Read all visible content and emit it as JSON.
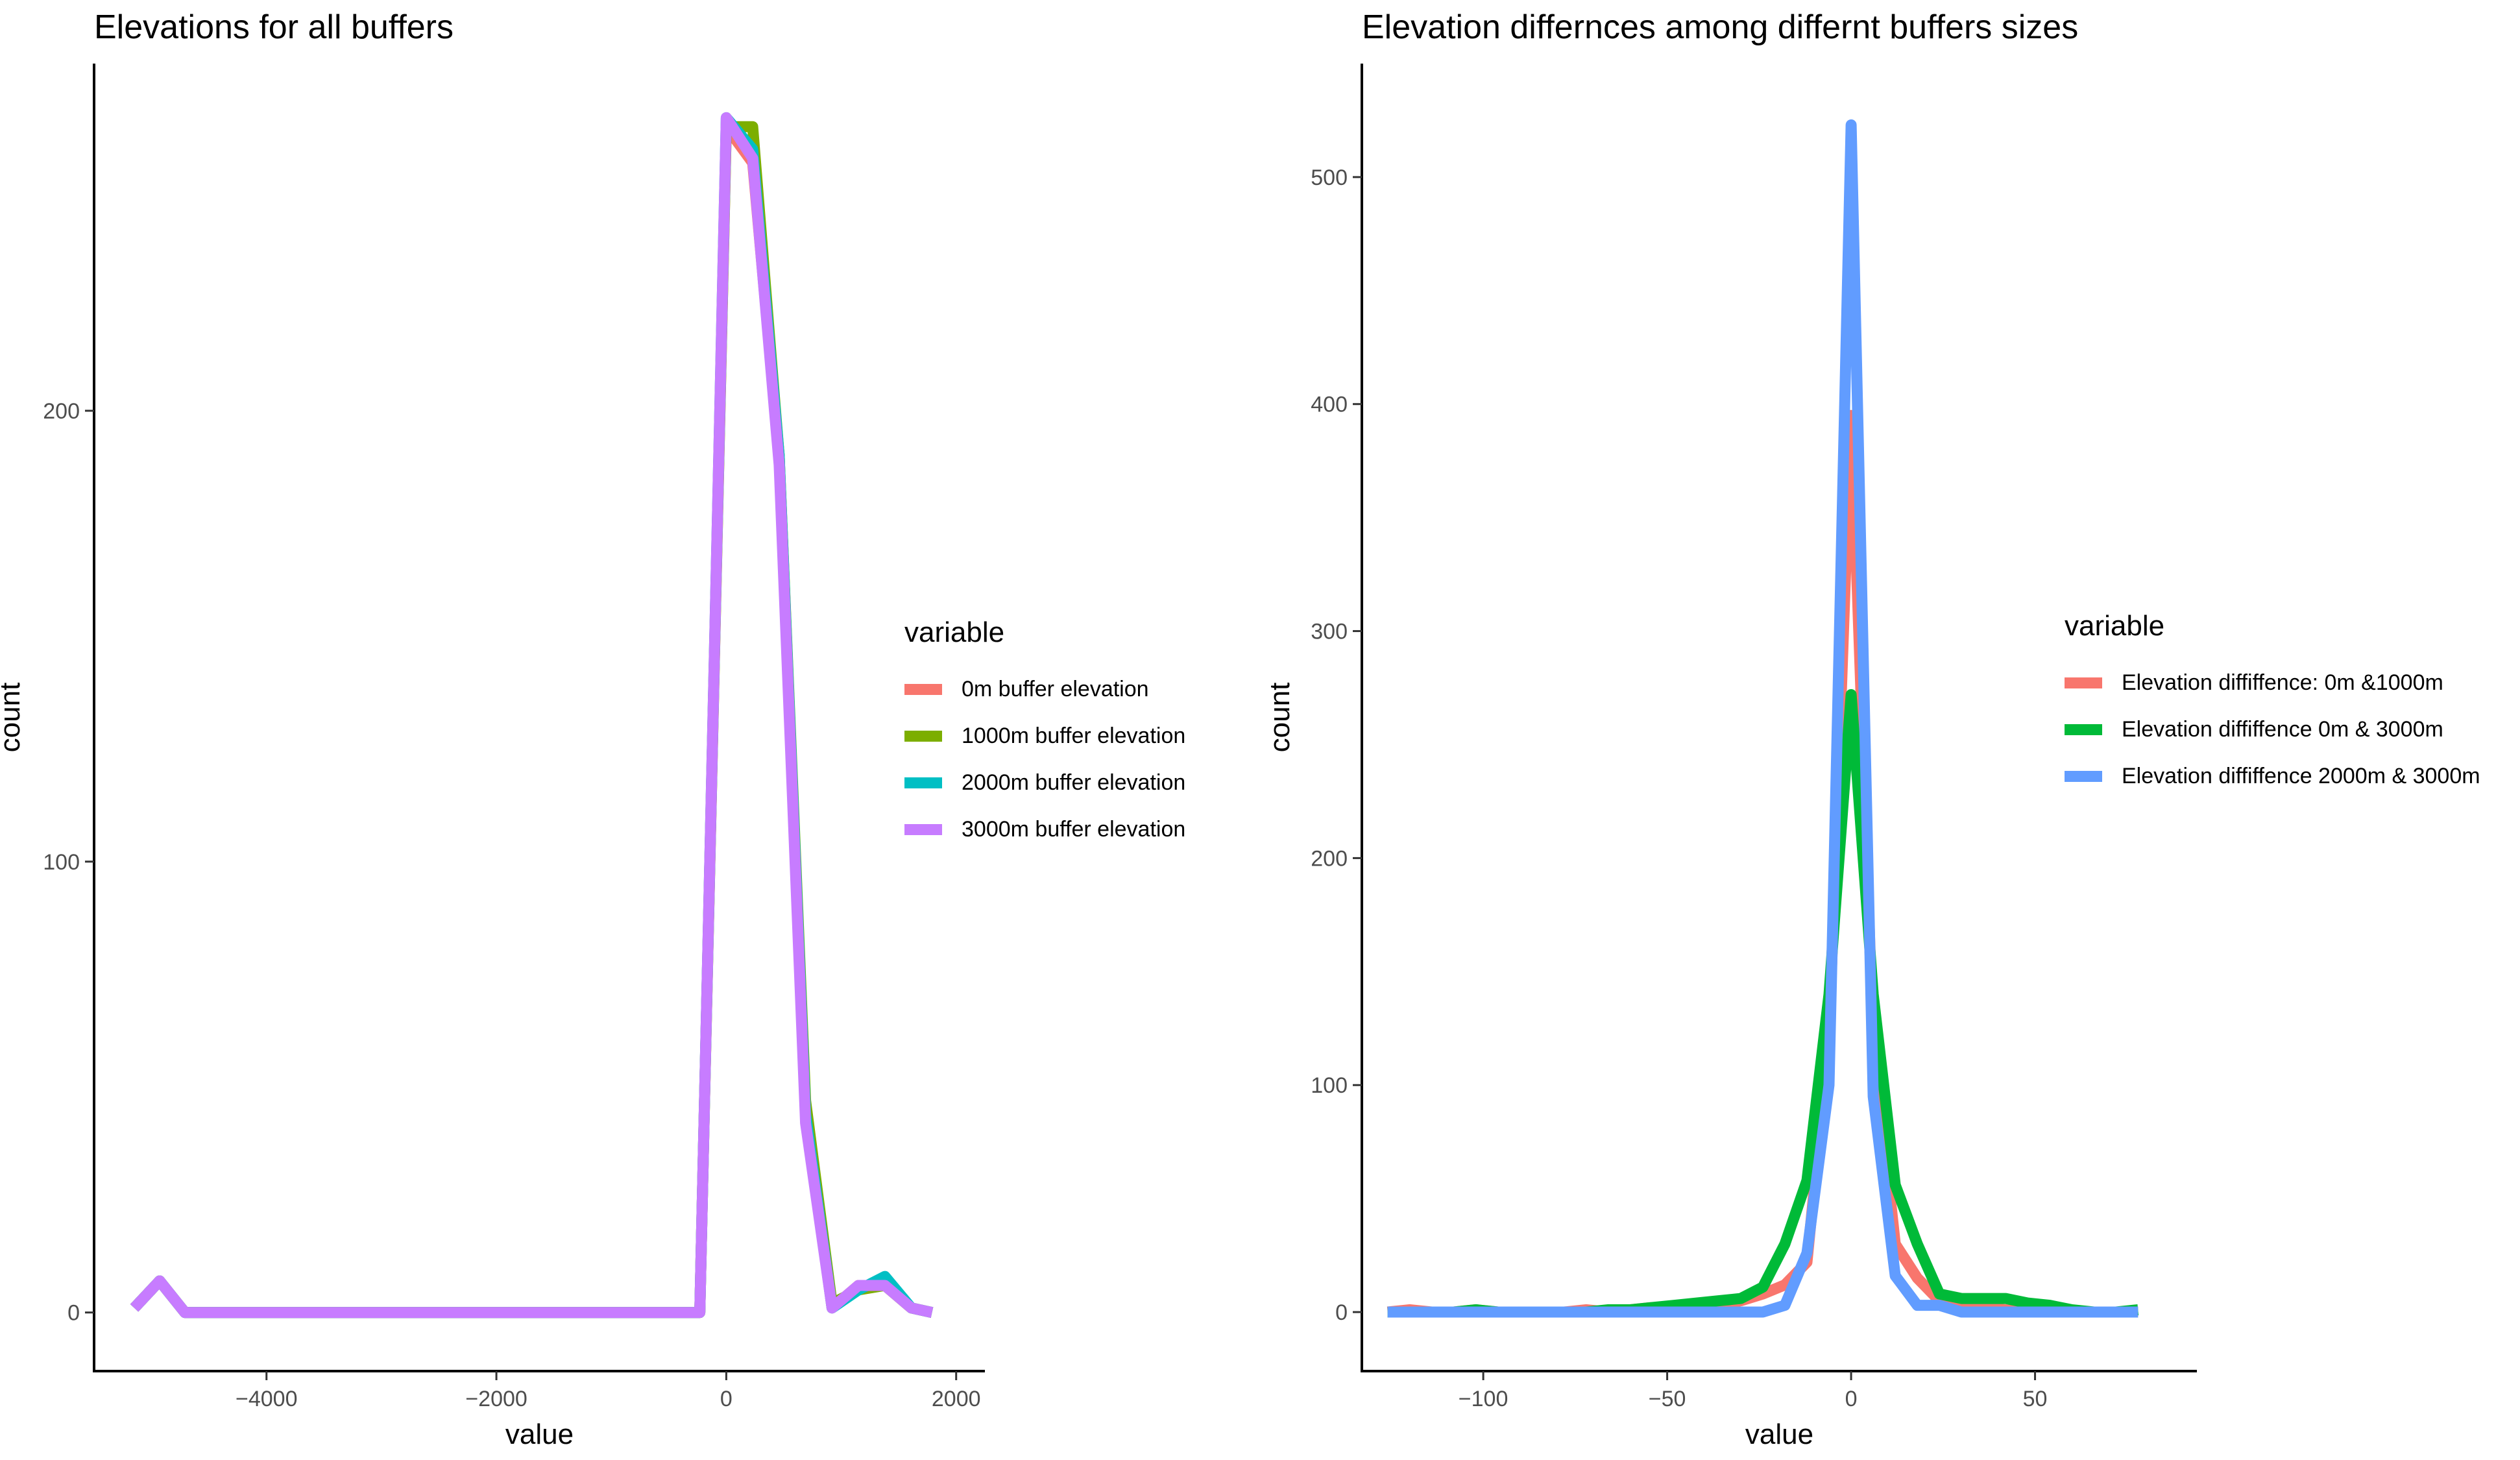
{
  "chart_data": [
    {
      "type": "line",
      "title": "Elevations for all buffers",
      "xlabel": "value",
      "ylabel": "count",
      "xlim": [
        -5500,
        2250
      ],
      "ylim": [
        -13,
        277
      ],
      "xticks": [
        -4000,
        -2000,
        0,
        2000
      ],
      "yticks": [
        0,
        100,
        200
      ],
      "xtick_labels": [
        "−4000",
        "−2000",
        "0",
        "2000"
      ],
      "ytick_labels": [
        "0",
        "100",
        "200"
      ],
      "grid": false,
      "legend_position": "right",
      "legend_title": "variable",
      "series": [
        {
          "name": "0m buffer elevation",
          "color": "#F8766D",
          "x": [
            -5150,
            -4930,
            -4710,
            -4490,
            -4270,
            -4050,
            -3830,
            -3610,
            -3390,
            -3170,
            -2950,
            -2730,
            -2510,
            -2290,
            -2070,
            -1850,
            -1630,
            -1410,
            -1190,
            -970,
            -750,
            -530,
            -310,
            -230,
            0,
            230,
            460,
            690,
            920,
            1150,
            1380,
            1610,
            1790
          ],
          "y": [
            1,
            7,
            0,
            0,
            0,
            0,
            0,
            0,
            0,
            0,
            0,
            0,
            0,
            0,
            0,
            0,
            0,
            0,
            0,
            0,
            0,
            0,
            0,
            0,
            263,
            255,
            190,
            44,
            1,
            6,
            6,
            1,
            0
          ]
        },
        {
          "name": "1000m buffer elevation",
          "color": "#7CAE00",
          "x": [
            -5150,
            -4930,
            -4710,
            -4490,
            -4270,
            -4050,
            -3830,
            -3610,
            -3390,
            -3170,
            -2950,
            -2730,
            -2510,
            -2290,
            -2070,
            -1850,
            -1630,
            -1410,
            -1190,
            -970,
            -750,
            -530,
            -310,
            -230,
            0,
            230,
            460,
            690,
            920,
            1150,
            1380,
            1610,
            1790
          ],
          "y": [
            1,
            7,
            0,
            0,
            0,
            0,
            0,
            0,
            0,
            0,
            0,
            0,
            0,
            0,
            0,
            0,
            0,
            0,
            0,
            0,
            0,
            0,
            0,
            0,
            263,
            263,
            190,
            47,
            2,
            5,
            6,
            1,
            0
          ]
        },
        {
          "name": "2000m buffer elevation",
          "color": "#00BFC4",
          "x": [
            -5150,
            -4930,
            -4710,
            -4490,
            -4270,
            -4050,
            -3830,
            -3610,
            -3390,
            -3170,
            -2950,
            -2730,
            -2510,
            -2290,
            -2070,
            -1850,
            -1630,
            -1410,
            -1190,
            -970,
            -750,
            -530,
            -310,
            -230,
            0,
            230,
            460,
            690,
            920,
            1150,
            1380,
            1610,
            1790
          ],
          "y": [
            1,
            7,
            0,
            0,
            0,
            0,
            0,
            0,
            0,
            0,
            0,
            0,
            0,
            0,
            0,
            0,
            0,
            0,
            0,
            0,
            0,
            0,
            0,
            0,
            265,
            258,
            190,
            44,
            1,
            5,
            8,
            1,
            0
          ]
        },
        {
          "name": "3000m buffer elevation",
          "color": "#C77CFF",
          "x": [
            -5150,
            -4930,
            -4710,
            -4490,
            -4270,
            -4050,
            -3830,
            -3610,
            -3390,
            -3170,
            -2950,
            -2730,
            -2510,
            -2290,
            -2070,
            -1850,
            -1630,
            -1410,
            -1190,
            -970,
            -750,
            -530,
            -310,
            -230,
            0,
            230,
            460,
            690,
            920,
            1150,
            1380,
            1610,
            1790
          ],
          "y": [
            1,
            7,
            0,
            0,
            0,
            0,
            0,
            0,
            0,
            0,
            0,
            0,
            0,
            0,
            0,
            0,
            0,
            0,
            0,
            0,
            0,
            0,
            0,
            0,
            265,
            256,
            188,
            42,
            1,
            6,
            6,
            1,
            0
          ]
        }
      ]
    },
    {
      "type": "line",
      "title": "Elevation differnces among differnt buffers sizes",
      "xlabel": "value",
      "ylabel": "count",
      "xlim": [
        -133,
        94
      ],
      "ylim": [
        -26,
        550
      ],
      "xticks": [
        -100,
        -50,
        0,
        50
      ],
      "yticks": [
        0,
        100,
        200,
        300,
        400,
        500
      ],
      "xtick_labels": [
        "−100",
        "−50",
        "0",
        "50"
      ],
      "ytick_labels": [
        "0",
        "100",
        "200",
        "300",
        "400",
        "500"
      ],
      "grid": false,
      "legend_position": "right",
      "legend_title": "variable",
      "series": [
        {
          "name": "Elevation diffiffence: 0m &1000m",
          "color": "#F8766D",
          "x": [
            -126,
            -120,
            -114,
            -108,
            -102,
            -96,
            -90,
            -84,
            -78,
            -72,
            -66,
            -60,
            -54,
            -48,
            -42,
            -36,
            -30,
            -24,
            -18,
            -12,
            -6,
            0,
            6,
            12,
            18,
            24,
            30,
            36,
            42,
            48,
            54,
            60,
            66,
            72,
            78
          ],
          "y": [
            0,
            1,
            0,
            0,
            1,
            0,
            0,
            0,
            0,
            1,
            0,
            1,
            2,
            2,
            2,
            3,
            5,
            8,
            12,
            22,
            120,
            395,
            120,
            30,
            15,
            5,
            2,
            2,
            1,
            0,
            1,
            0,
            0,
            0,
            0
          ]
        },
        {
          "name": "Elevation diffiffence 0m & 3000m",
          "color": "#00BA38",
          "x": [
            -126,
            -120,
            -114,
            -108,
            -102,
            -96,
            -90,
            -84,
            -78,
            -72,
            -66,
            -60,
            -54,
            -48,
            -42,
            -36,
            -30,
            -24,
            -18,
            -12,
            -6,
            0,
            6,
            12,
            18,
            24,
            30,
            36,
            42,
            48,
            54,
            60,
            66,
            72,
            78
          ],
          "y": [
            0,
            0,
            0,
            0,
            1,
            0,
            0,
            0,
            0,
            0,
            1,
            1,
            2,
            3,
            4,
            5,
            6,
            11,
            30,
            58,
            140,
            272,
            140,
            56,
            30,
            8,
            6,
            6,
            6,
            4,
            3,
            1,
            0,
            0,
            1
          ]
        },
        {
          "name": "Elevation diffiffence 2000m & 3000m",
          "color": "#619CFF",
          "x": [
            -126,
            -120,
            -114,
            -108,
            -102,
            -96,
            -90,
            -84,
            -78,
            -72,
            -66,
            -60,
            -54,
            -48,
            -42,
            -36,
            -30,
            -24,
            -18,
            -12,
            -6,
            0,
            6,
            12,
            18,
            24,
            30,
            36,
            42,
            48,
            54,
            60,
            66,
            72,
            78
          ],
          "y": [
            0,
            0,
            0,
            0,
            0,
            0,
            0,
            0,
            0,
            0,
            0,
            0,
            0,
            0,
            0,
            0,
            0,
            0,
            3,
            26,
            100,
            523,
            95,
            16,
            3,
            3,
            0,
            0,
            0,
            0,
            0,
            0,
            0,
            0,
            0
          ]
        }
      ]
    }
  ]
}
